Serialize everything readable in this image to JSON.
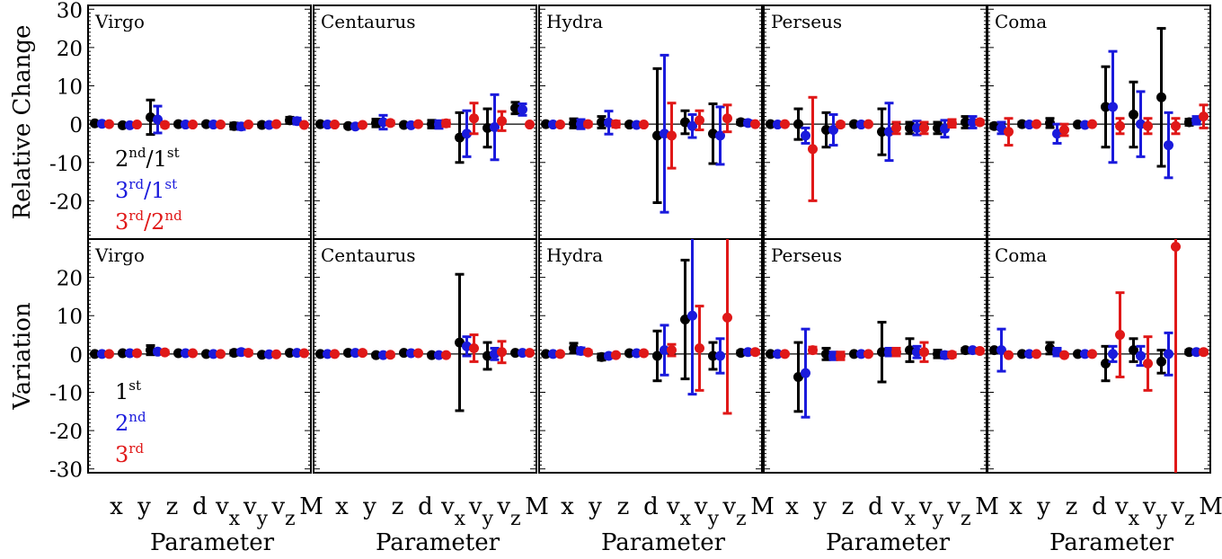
{
  "chart_data": {
    "type": "scatter",
    "subtype": "errorbar-grid",
    "x_tick_labels": [
      "x",
      "y",
      "z",
      "d",
      "v",
      "v",
      "v",
      "M"
    ],
    "x_tick_subscripts": [
      "",
      "",
      "",
      "",
      "x",
      "y",
      "z",
      ""
    ],
    "xlabel": "Parameter",
    "columns": [
      "Virgo",
      "Centaurus",
      "Hydra",
      "Perseus",
      "Coma"
    ],
    "colors": {
      "black": "#000000",
      "blue": "#1a1adc",
      "red": "#e01818"
    },
    "rows": [
      {
        "ylabel": "Relative Change",
        "ylim": [
          -30,
          31
        ],
        "yticks": [
          "30",
          "20",
          "10",
          "0",
          "-10",
          "-20"
        ],
        "ytick_values": [
          30,
          20,
          10,
          0,
          -10,
          -20
        ],
        "legend": [
          {
            "base": "2",
            "sup1": "nd",
            "mid": "/1",
            "sup2": "st",
            "color": "#000000"
          },
          {
            "base": "3",
            "sup1": "rd",
            "mid": "/1",
            "sup2": "st",
            "color": "#1a1adc"
          },
          {
            "base": "3",
            "sup1": "rd",
            "mid": "/2",
            "sup2": "nd",
            "color": "#e01818"
          }
        ],
        "panels": [
          {
            "cluster": "Virgo",
            "series": [
              {
                "color": "black",
                "y": [
                  0.2,
                  -0.3,
                  1.8,
                  0.0,
                  0.0,
                  -0.5,
                  -0.2,
                  1.0
                ],
                "err": [
                  0.4,
                  0.4,
                  4.5,
                  0.4,
                  0.4,
                  0.8,
                  0.5,
                  0.8
                ]
              },
              {
                "color": "blue",
                "y": [
                  0.1,
                  -0.3,
                  1.2,
                  -0.1,
                  -0.1,
                  -0.6,
                  -0.2,
                  0.8
                ],
                "err": [
                  0.4,
                  0.4,
                  3.5,
                  0.4,
                  0.4,
                  0.8,
                  0.5,
                  0.8
                ]
              },
              {
                "color": "red",
                "y": [
                  0.0,
                  -0.1,
                  -0.2,
                  -0.1,
                  -0.1,
                  -0.1,
                  0.0,
                  -0.2
                ],
                "err": [
                  0.3,
                  0.3,
                  0.5,
                  0.3,
                  0.3,
                  0.3,
                  0.3,
                  0.3
                ]
              }
            ]
          },
          {
            "cluster": "Centaurus",
            "series": [
              {
                "color": "black",
                "y": [
                  0.0,
                  -0.5,
                  0.3,
                  -0.2,
                  0.0,
                  -3.5,
                  -1.0,
                  4.2
                ],
                "err": [
                  0.4,
                  0.4,
                  1.0,
                  0.4,
                  1.0,
                  6.5,
                  5.0,
                  1.5
                ]
              },
              {
                "color": "blue",
                "y": [
                  -0.1,
                  -0.6,
                  0.5,
                  -0.3,
                  -0.1,
                  -2.5,
                  -0.8,
                  3.8
                ],
                "err": [
                  0.4,
                  0.4,
                  1.8,
                  0.4,
                  1.0,
                  6.0,
                  8.5,
                  1.5
                ]
              },
              {
                "color": "red",
                "y": [
                  -0.1,
                  -0.2,
                  0.3,
                  0.0,
                  0.2,
                  1.5,
                  0.8,
                  -0.1
                ],
                "err": [
                  0.3,
                  0.3,
                  0.5,
                  0.3,
                  0.8,
                  4.0,
                  2.5,
                  0.3
                ]
              }
            ]
          },
          {
            "cluster": "Hydra",
            "series": [
              {
                "color": "black",
                "y": [
                  0.0,
                  0.2,
                  0.5,
                  -0.1,
                  -3.0,
                  0.5,
                  -2.5,
                  0.5
                ],
                "err": [
                  0.4,
                  1.2,
                  1.5,
                  0.4,
                  17.5,
                  3.0,
                  7.8,
                  0.6
                ]
              },
              {
                "color": "blue",
                "y": [
                  -0.1,
                  0.0,
                  0.4,
                  -0.2,
                  -2.5,
                  -0.5,
                  -3.0,
                  0.3
                ],
                "err": [
                  0.4,
                  1.2,
                  3.0,
                  0.4,
                  20.5,
                  3.0,
                  7.5,
                  0.6
                ]
              },
              {
                "color": "red",
                "y": [
                  -0.1,
                  0.0,
                  0.0,
                  -0.1,
                  -3.0,
                  1.0,
                  1.5,
                  0.0
                ],
                "err": [
                  0.3,
                  0.5,
                  0.8,
                  0.3,
                  8.5,
                  2.5,
                  3.5,
                  0.3
                ]
              }
            ]
          },
          {
            "cluster": "Perseus",
            "series": [
              {
                "color": "black",
                "y": [
                  0.0,
                  0.0,
                  -1.5,
                  0.0,
                  -2.0,
                  -1.0,
                  -1.0,
                  0.5
                ],
                "err": [
                  0.4,
                  4.0,
                  4.5,
                  0.4,
                  6.0,
                  1.5,
                  1.5,
                  1.5
                ]
              },
              {
                "color": "blue",
                "y": [
                  -0.1,
                  -3.0,
                  -1.5,
                  -0.1,
                  -2.0,
                  -1.0,
                  -1.2,
                  0.5
                ],
                "err": [
                  0.4,
                  2.0,
                  4.0,
                  0.4,
                  7.5,
                  1.8,
                  2.2,
                  1.5
                ]
              },
              {
                "color": "red",
                "y": [
                  0.0,
                  -6.5,
                  -0.1,
                  0.0,
                  -1.0,
                  -1.0,
                  0.2,
                  0.5
                ],
                "err": [
                  0.3,
                  13.5,
                  0.5,
                  0.3,
                  1.5,
                  1.5,
                  1.0,
                  0.5
                ]
              }
            ]
          },
          {
            "cluster": "Coma",
            "series": [
              {
                "color": "black",
                "y": [
                  -0.5,
                  0.0,
                  0.3,
                  -0.1,
                  4.5,
                  2.5,
                  7.0,
                  0.5
                ],
                "err": [
                  0.6,
                  0.5,
                  1.2,
                  0.4,
                  10.5,
                  8.5,
                  18.0,
                  0.8
                ]
              },
              {
                "color": "blue",
                "y": [
                  -1.0,
                  -0.1,
                  -2.5,
                  -0.2,
                  4.5,
                  0.0,
                  -5.5,
                  1.0
                ],
                "err": [
                  1.5,
                  0.5,
                  2.5,
                  0.4,
                  14.5,
                  8.5,
                  8.5,
                  1.0
                ]
              },
              {
                "color": "red",
                "y": [
                  -2.0,
                  0.0,
                  -1.5,
                  0.0,
                  -0.5,
                  -0.5,
                  -0.5,
                  2.0
                ],
                "err": [
                  3.5,
                  0.3,
                  1.5,
                  0.3,
                  2.0,
                  2.0,
                  2.0,
                  3.0
                ]
              }
            ]
          }
        ]
      },
      {
        "ylabel": "Variation",
        "ylim": [
          -31,
          30
        ],
        "yticks": [
          "20",
          "10",
          "0",
          "-10",
          "-20",
          "-30"
        ],
        "ytick_values": [
          20,
          10,
          0,
          -10,
          -20,
          -30
        ],
        "legend": [
          {
            "base": "1",
            "sup1": "st",
            "mid": "",
            "sup2": "",
            "color": "#000000"
          },
          {
            "base": "2",
            "sup1": "nd",
            "mid": "",
            "sup2": "",
            "color": "#1a1adc"
          },
          {
            "base": "3",
            "sup1": "rd",
            "mid": "",
            "sup2": "",
            "color": "#e01818"
          }
        ],
        "panels": [
          {
            "cluster": "Virgo",
            "series": [
              {
                "color": "black",
                "y": [
                  0.0,
                  0.2,
                  1.0,
                  0.2,
                  0.0,
                  0.3,
                  -0.2,
                  0.3
                ],
                "err": [
                  0.3,
                  0.3,
                  1.2,
                  0.3,
                  0.3,
                  0.6,
                  0.3,
                  0.3
                ]
              },
              {
                "color": "blue",
                "y": [
                  0.0,
                  0.2,
                  0.6,
                  0.2,
                  0.0,
                  0.5,
                  -0.1,
                  0.3
                ],
                "err": [
                  0.3,
                  0.3,
                  0.5,
                  0.3,
                  0.3,
                  0.6,
                  0.3,
                  0.3
                ]
              },
              {
                "color": "red",
                "y": [
                  0.0,
                  0.2,
                  0.4,
                  0.2,
                  0.0,
                  0.3,
                  -0.1,
                  0.2
                ],
                "err": [
                  0.3,
                  0.3,
                  0.5,
                  0.3,
                  0.3,
                  0.5,
                  0.3,
                  0.3
                ]
              }
            ]
          },
          {
            "cluster": "Centaurus",
            "series": [
              {
                "color": "black",
                "y": [
                  0.0,
                  0.3,
                  -0.3,
                  0.3,
                  -0.3,
                  3.0,
                  -0.5,
                  0.3
                ],
                "err": [
                  0.3,
                  0.4,
                  0.4,
                  0.3,
                  0.4,
                  17.8,
                  3.5,
                  0.3
                ]
              },
              {
                "color": "blue",
                "y": [
                  0.0,
                  0.3,
                  -0.3,
                  0.2,
                  -0.3,
                  2.0,
                  0.0,
                  0.3
                ],
                "err": [
                  0.3,
                  0.4,
                  0.4,
                  0.3,
                  0.4,
                  2.5,
                  1.5,
                  0.3
                ]
              },
              {
                "color": "red",
                "y": [
                  0.0,
                  0.3,
                  -0.2,
                  0.2,
                  -0.3,
                  1.5,
                  0.5,
                  0.3
                ],
                "err": [
                  0.3,
                  0.4,
                  0.4,
                  0.3,
                  0.4,
                  3.5,
                  2.8,
                  0.3
                ]
              }
            ]
          },
          {
            "cluster": "Hydra",
            "series": [
              {
                "color": "black",
                "y": [
                  0.0,
                  1.5,
                  -0.8,
                  0.2,
                  -0.5,
                  9.0,
                  -0.5,
                  0.3
                ],
                "err": [
                  0.3,
                  1.3,
                  0.8,
                  0.4,
                  6.5,
                  15.5,
                  3.5,
                  0.5
                ]
              },
              {
                "color": "blue",
                "y": [
                  0.0,
                  0.8,
                  -0.5,
                  0.2,
                  1.0,
                  10.0,
                  -0.5,
                  0.5
                ],
                "err": [
                  0.3,
                  0.8,
                  0.5,
                  0.4,
                  6.5,
                  20.5,
                  4.5,
                  0.5
                ]
              },
              {
                "color": "red",
                "y": [
                  0.0,
                  0.4,
                  -0.3,
                  0.2,
                  1.0,
                  1.5,
                  9.5,
                  0.5
                ],
                "err": [
                  0.3,
                  0.5,
                  0.4,
                  0.4,
                  1.5,
                  11.0,
                  25.0,
                  0.5
                ]
              }
            ]
          },
          {
            "cluster": "Perseus",
            "series": [
              {
                "color": "black",
                "y": [
                  0.0,
                  -6.0,
                  0.0,
                  0.0,
                  0.5,
                  1.0,
                  0.0,
                  1.0
                ],
                "err": [
                  0.3,
                  9.0,
                  1.5,
                  0.3,
                  7.8,
                  3.0,
                  1.0,
                  0.5
                ]
              },
              {
                "color": "blue",
                "y": [
                  0.0,
                  -5.0,
                  -0.5,
                  0.0,
                  0.5,
                  0.5,
                  -0.3,
                  1.0
                ],
                "err": [
                  0.3,
                  11.5,
                  1.0,
                  0.3,
                  1.0,
                  1.5,
                  0.8,
                  0.5
                ]
              },
              {
                "color": "red",
                "y": [
                  0.0,
                  1.0,
                  -0.5,
                  0.0,
                  0.5,
                  0.5,
                  -0.2,
                  0.8
                ],
                "err": [
                  0.3,
                  0.8,
                  1.0,
                  0.3,
                  1.0,
                  2.5,
                  0.6,
                  0.5
                ]
              }
            ]
          },
          {
            "cluster": "Coma",
            "series": [
              {
                "color": "black",
                "y": [
                  1.0,
                  0.0,
                  1.5,
                  0.0,
                  -2.5,
                  1.0,
                  -2.0,
                  0.5
                ],
                "err": [
                  0.5,
                  0.3,
                  1.5,
                  0.3,
                  4.5,
                  3.0,
                  3.0,
                  0.5
                ]
              },
              {
                "color": "blue",
                "y": [
                  1.0,
                  0.0,
                  0.5,
                  0.0,
                  0.0,
                  -0.5,
                  0.0,
                  0.5
                ],
                "err": [
                  5.5,
                  0.3,
                  1.0,
                  0.3,
                  2.0,
                  2.5,
                  5.5,
                  0.5
                ]
              },
              {
                "color": "red",
                "y": [
                  -0.3,
                  0.0,
                  -0.3,
                  0.0,
                  5.0,
                  -2.5,
                  28.0,
                  0.5
                ],
                "err": [
                  0.3,
                  0.3,
                  0.4,
                  0.3,
                  11.0,
                  7.0,
                  60.0,
                  0.5
                ]
              }
            ]
          }
        ]
      }
    ]
  }
}
